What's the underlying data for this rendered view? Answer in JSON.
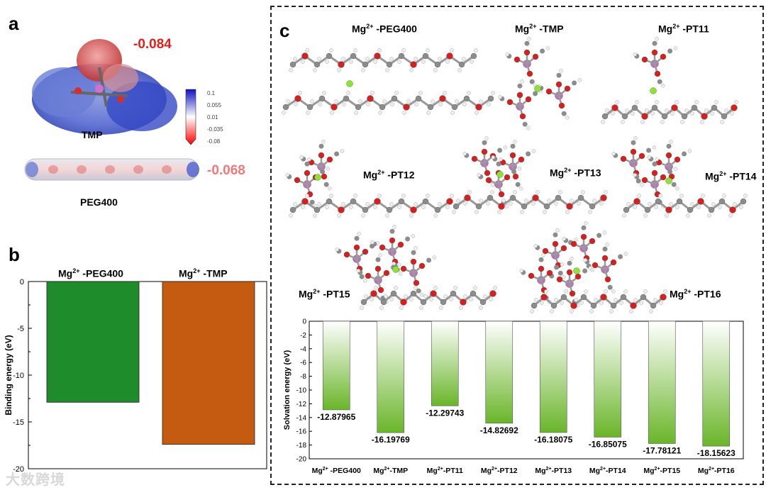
{
  "panel_a": {
    "letter": "a",
    "tmp_label": "TMP",
    "peg_label": "PEG400",
    "tmp_value": "-0.084",
    "peg_value": "-0.068",
    "colors": {
      "tmp_value": "#e0201a",
      "peg_value": "#f07a7a"
    },
    "colorbar_ticks": [
      "0.1",
      "0.055",
      "0.01",
      "-0.035",
      "-0.08"
    ]
  },
  "panel_b": {
    "letter": "b",
    "bar_labels": [
      {
        "base": "Mg",
        "sup": "2+",
        "rest": " -PEG400"
      },
      {
        "base": "Mg",
        "sup": "2+",
        "rest": " -TMP"
      }
    ]
  },
  "panel_c": {
    "letter": "c",
    "structures": [
      {
        "base": "Mg",
        "sup": "2+",
        "rest": " -PEG400"
      },
      {
        "base": "Mg",
        "sup": "2+",
        "rest": " -TMP"
      },
      {
        "base": "Mg",
        "sup": "2+",
        "rest": " -PT11"
      },
      {
        "base": "Mg",
        "sup": "2+",
        "rest": " -PT12"
      },
      {
        "base": "Mg",
        "sup": "2+",
        "rest": " -PT13"
      },
      {
        "base": "Mg",
        "sup": "2+",
        "rest": " -PT14"
      },
      {
        "base": "Mg",
        "sup": "2+",
        "rest": " -PT15"
      },
      {
        "base": "Mg",
        "sup": "2+",
        "rest": " -PT16"
      }
    ]
  },
  "watermark": "大数跨境",
  "chart_data": [
    {
      "type": "bar",
      "title": "",
      "xlabel": "",
      "ylabel": "Binding energy (eV)",
      "categories": [
        "Mg2+ -PEG400",
        "Mg2+ -TMP"
      ],
      "values": [
        -12.9,
        -17.4
      ],
      "colors": [
        "#1e8c2a",
        "#c55a11"
      ],
      "ylim": [
        -20,
        0
      ],
      "yticks": [
        "0",
        "-5",
        "-10",
        "-15",
        "-20"
      ],
      "grid": false
    },
    {
      "type": "bar",
      "title": "",
      "xlabel": "",
      "ylabel": "Solvation energy (eV)",
      "categories": [
        "Mg2+ -PEG400",
        "Mg2+-TMP",
        "Mg2+-PT11",
        "Mg2+-PT12",
        "Mg2+-PT13",
        "Mg2+-PT14",
        "Mg2+-PT15",
        "Mg2+-PT16"
      ],
      "values": [
        -12.87965,
        -16.19769,
        -12.29743,
        -14.82692,
        -16.18075,
        -16.85075,
        -17.78121,
        -18.15623
      ],
      "data_labels": [
        "-12.87965",
        "-16.19769",
        "-12.29743",
        "-14.82692",
        "-16.18075",
        "-16.85075",
        "-17.78121",
        "-18.15623"
      ],
      "ylim": [
        -20,
        0
      ],
      "yticks": [
        "0",
        "-2",
        "-4",
        "-6",
        "-8",
        "-10",
        "-12",
        "-14",
        "-16",
        "-18",
        "-20"
      ],
      "bar_color": "#6ab52a",
      "grid": false
    }
  ]
}
